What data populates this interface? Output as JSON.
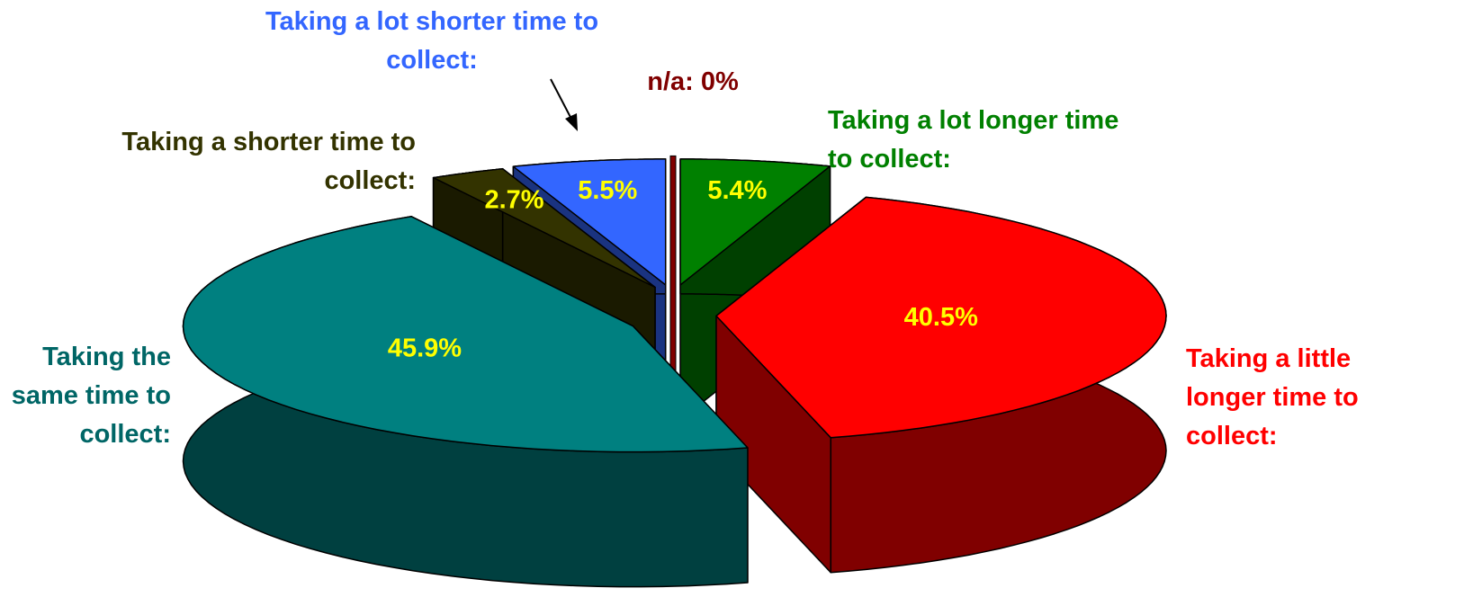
{
  "chart_data": {
    "type": "pie3d",
    "categories": [
      "n/a:",
      "Taking a lot longer time to collect:",
      "Taking a little longer time to collect:",
      "Taking the same time to collect:",
      "Taking a shorter time to collect:",
      "Taking a lot shorter time to collect:"
    ],
    "values": [
      0,
      5.4,
      40.5,
      45.9,
      2.7,
      5.5
    ],
    "value_labels": [
      "0%",
      "5.4%",
      "40.5%",
      "45.9%",
      "2.7%",
      "5.5%"
    ],
    "colors": [
      "#800000",
      "#008000",
      "#ff0000",
      "#008080",
      "#333300",
      "#3366ff"
    ],
    "label_colors": [
      "#800000",
      "#008000",
      "#ff0000",
      "#006666",
      "#333300",
      "#3366ff"
    ]
  }
}
